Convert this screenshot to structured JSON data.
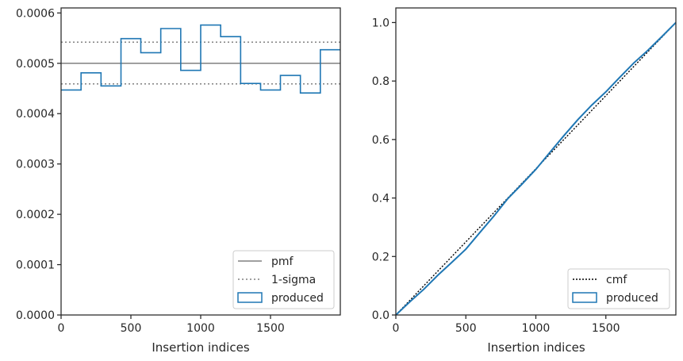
{
  "chart_data": [
    {
      "type": "line",
      "subtype": "step-histogram",
      "xlabel": "Insertion indices",
      "ylabel": "",
      "xlim": [
        0,
        2000
      ],
      "ylim": [
        0,
        0.00061
      ],
      "xticks": [
        0,
        500,
        1000,
        1500
      ],
      "xtick_labels": [
        "0",
        "500",
        "1000",
        "1500"
      ],
      "yticks": [
        0,
        0.0001,
        0.0002,
        0.0003,
        0.0004,
        0.0005,
        0.0006
      ],
      "ytick_labels": [
        "0.0000",
        "0.0001",
        "0.0002",
        "0.0003",
        "0.0004",
        "0.0005",
        "0.0006"
      ],
      "grid": false,
      "legend_position": "lower right",
      "series": [
        {
          "name": "pmf",
          "kind": "hline",
          "style": "solid",
          "color": "#808080",
          "y": 0.0005
        },
        {
          "name": "1-sigma",
          "kind": "hline-pair",
          "style": "dotted",
          "color": "#808080",
          "y": [
            0.000459,
            0.000542
          ]
        },
        {
          "name": "produced",
          "kind": "step",
          "color": "#1f77b4",
          "bin_edges": [
            0,
            143,
            286,
            429,
            571,
            714,
            857,
            1000,
            1143,
            1286,
            1429,
            1571,
            1714,
            1857,
            2000
          ],
          "values": [
            0.000447,
            0.000481,
            0.000455,
            0.000549,
            0.000521,
            0.000569,
            0.000486,
            0.000576,
            0.000553,
            0.00046,
            0.000447,
            0.000476,
            0.000441,
            0.000527
          ]
        }
      ]
    },
    {
      "type": "line",
      "xlabel": "Insertion indices",
      "ylabel": "",
      "xlim": [
        0,
        2000
      ],
      "ylim": [
        0,
        1.05
      ],
      "xticks": [
        0,
        500,
        1000,
        1500
      ],
      "xtick_labels": [
        "0",
        "500",
        "1000",
        "1500"
      ],
      "yticks": [
        0,
        0.2,
        0.4,
        0.6,
        0.8,
        1.0
      ],
      "ytick_labels": [
        "0.0",
        "0.2",
        "0.4",
        "0.6",
        "0.8",
        "1.0"
      ],
      "grid": false,
      "legend_position": "lower right",
      "series": [
        {
          "name": "cmf",
          "style": "dotted",
          "color": "#000000",
          "x": [
            0,
            2000
          ],
          "y": [
            0,
            1.0
          ]
        },
        {
          "name": "produced",
          "style": "solid",
          "color": "#1f77b4",
          "x": [
            0,
            100,
            200,
            300,
            400,
            500,
            600,
            700,
            800,
            900,
            1000,
            1100,
            1200,
            1300,
            1400,
            1500,
            1600,
            1700,
            1800,
            1900,
            2000
          ],
          "y": [
            0,
            0.045,
            0.088,
            0.136,
            0.18,
            0.225,
            0.282,
            0.338,
            0.398,
            0.447,
            0.498,
            0.556,
            0.613,
            0.668,
            0.718,
            0.763,
            0.813,
            0.862,
            0.905,
            0.952,
            1.0
          ]
        }
      ]
    }
  ]
}
